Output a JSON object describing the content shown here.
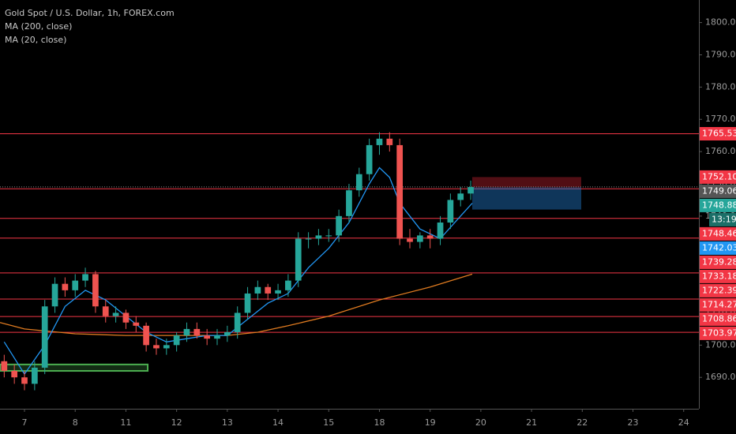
{
  "chart_data": {
    "type": "candlestick",
    "title": "Gold Spot / U.S. Dollar, 1h, FOREX.com",
    "xlim": [
      -0.483,
      13.3
    ],
    "ylim": [
      1681,
      1807
    ],
    "xticks": [
      {
        "value": 0,
        "label": "7"
      },
      {
        "value": 1,
        "label": "8"
      },
      {
        "value": 2,
        "label": "11"
      },
      {
        "value": 3,
        "label": "12"
      },
      {
        "value": 4,
        "label": "13"
      },
      {
        "value": 5,
        "label": "14"
      },
      {
        "value": 6,
        "label": "15"
      },
      {
        "value": 7,
        "label": "18"
      },
      {
        "value": 8,
        "label": "19"
      },
      {
        "value": 9,
        "label": "20"
      },
      {
        "value": 10,
        "label": "21"
      },
      {
        "value": 11,
        "label": "22"
      },
      {
        "value": 12,
        "label": "23"
      },
      {
        "value": 13,
        "label": "24"
      }
    ],
    "yticks": [
      {
        "value": 1690,
        "label": "1690.00"
      },
      {
        "value": 1700,
        "label": "1700.00"
      },
      {
        "value": 1710,
        "label": "1710.00"
      },
      {
        "value": 1720,
        "label": "1720.00"
      },
      {
        "value": 1730,
        "label": "1730.00"
      },
      {
        "value": 1740,
        "label": "1740.00"
      },
      {
        "value": 1750,
        "label": "1750.00"
      },
      {
        "value": 1760,
        "label": "1760.00"
      },
      {
        "value": 1770,
        "label": "1770.00"
      },
      {
        "value": 1780,
        "label": "1780.00"
      },
      {
        "value": 1790,
        "label": "1790.00"
      },
      {
        "value": 1800,
        "label": "1800.00"
      }
    ],
    "up_color": "#26a69a",
    "down_color": "#ef5350",
    "candles": {
      "x": [
        -0.4,
        -0.2,
        0,
        0.2,
        0.4,
        0.6,
        0.8,
        1.0,
        1.2,
        1.4,
        1.6,
        1.8,
        2.0,
        2.2,
        2.4,
        2.6,
        2.8,
        3.0,
        3.2,
        3.4,
        3.6,
        3.8,
        4.0,
        4.2,
        4.4,
        4.6,
        4.8,
        5.0,
        5.2,
        5.4,
        5.6,
        5.8,
        6.0,
        6.2,
        6.4,
        6.6,
        6.8,
        7.0,
        7.2,
        7.4,
        7.6,
        7.8,
        8.0,
        8.2,
        8.4,
        8.6,
        8.8
      ],
      "open": [
        1695,
        1692,
        1690,
        1688,
        1693,
        1712,
        1719,
        1717,
        1720,
        1722,
        1712,
        1709,
        1710,
        1707,
        1706,
        1700,
        1699,
        1700,
        1703,
        1705,
        1703,
        1702,
        1703,
        1704,
        1710,
        1716,
        1718,
        1716,
        1717,
        1720,
        1733,
        1733,
        1734,
        1734,
        1740,
        1748,
        1753,
        1762,
        1764,
        1762,
        1733,
        1732,
        1734,
        1733,
        1738,
        1745,
        1747
      ],
      "high": [
        1697,
        1694,
        1692,
        1695,
        1714,
        1721,
        1721,
        1722,
        1724,
        1723,
        1714,
        1712,
        1711,
        1709,
        1707,
        1702,
        1702,
        1704,
        1707,
        1707,
        1705,
        1705,
        1706,
        1712,
        1718,
        1720,
        1719,
        1719,
        1722,
        1735,
        1735,
        1736,
        1736,
        1742,
        1750,
        1755,
        1764,
        1766,
        1766,
        1764,
        1736,
        1735,
        1736,
        1740,
        1747,
        1749,
        1751
      ],
      "low": [
        1690,
        1688,
        1686,
        1686,
        1691,
        1710,
        1715,
        1715,
        1718,
        1710,
        1707,
        1707,
        1705,
        1704,
        1698,
        1697,
        1697,
        1698,
        1701,
        1702,
        1700,
        1700,
        1701,
        1702,
        1708,
        1714,
        1714,
        1714,
        1715,
        1718,
        1730,
        1731,
        1732,
        1732,
        1738,
        1746,
        1751,
        1759,
        1760,
        1731,
        1730,
        1730,
        1730,
        1731,
        1736,
        1743,
        1745
      ],
      "close": [
        1692,
        1690,
        1688,
        1693,
        1712,
        1719,
        1717,
        1720,
        1722,
        1712,
        1709,
        1710,
        1707,
        1706,
        1700,
        1699,
        1700,
        1703,
        1705,
        1703,
        1702,
        1703,
        1704,
        1710,
        1716,
        1718,
        1716,
        1717,
        1720,
        1733,
        1733,
        1734,
        1734,
        1740,
        1748,
        1753,
        1762,
        1764,
        1762,
        1733,
        1732,
        1734,
        1733,
        1738,
        1745,
        1747,
        1749
      ]
    },
    "series": [
      {
        "name": "MA (200, close)",
        "color": "#e07b20",
        "x": [
          -0.483,
          0,
          1,
          2,
          3,
          4,
          4.6,
          5.2,
          6,
          7,
          8,
          8.83
        ],
        "values": [
          1707,
          1705,
          1703.5,
          1703,
          1703,
          1703,
          1704,
          1706,
          1709,
          1714,
          1718,
          1722
        ]
      },
      {
        "name": "MA (20, close)",
        "color": "#2196f3",
        "x": [
          -0.4,
          0,
          0.4,
          0.8,
          1.2,
          1.6,
          2.0,
          2.4,
          2.8,
          3.2,
          3.6,
          4.0,
          4.4,
          4.8,
          5.2,
          5.6,
          6.0,
          6.4,
          6.8,
          7.0,
          7.2,
          7.4,
          7.8,
          8.2,
          8.6,
          8.83
        ],
        "values": [
          1701,
          1691,
          1700,
          1712,
          1717,
          1714,
          1709,
          1704,
          1701,
          1702,
          1703,
          1703,
          1708,
          1713,
          1716,
          1724,
          1730,
          1738,
          1750,
          1755,
          1752,
          1744,
          1736,
          1733,
          1740,
          1744
        ]
      }
    ],
    "levels": [
      {
        "value": 1765.53,
        "label": "1765.53"
      },
      {
        "value": 1748.46,
        "label": "1748.46"
      },
      {
        "value": 1739.28,
        "label": "1739.28"
      },
      {
        "value": 1733.18,
        "label": "1733.18"
      },
      {
        "value": 1722.39,
        "label": "1722.39"
      },
      {
        "value": 1714.27,
        "label": "1714.27"
      },
      {
        "value": 1708.86,
        "label": "1708.86"
      },
      {
        "value": 1703.97,
        "label": "1703.97"
      }
    ],
    "level_color": "#f23645",
    "zone": {
      "x": [
        -0.483,
        2.43
      ],
      "y": [
        1692,
        1694
      ],
      "color": "#4caf50"
    },
    "position": {
      "x": [
        8.83,
        10.98
      ],
      "stop": {
        "value": 1752.1,
        "label": "1752.10"
      },
      "entry": {
        "value": 1748.88,
        "label": "1748.88"
      },
      "target": {
        "value": 1742.03,
        "label": "1742.03"
      }
    },
    "last_price": {
      "value": 1749.06,
      "label": "1749.06"
    },
    "countdown": "13:19"
  }
}
